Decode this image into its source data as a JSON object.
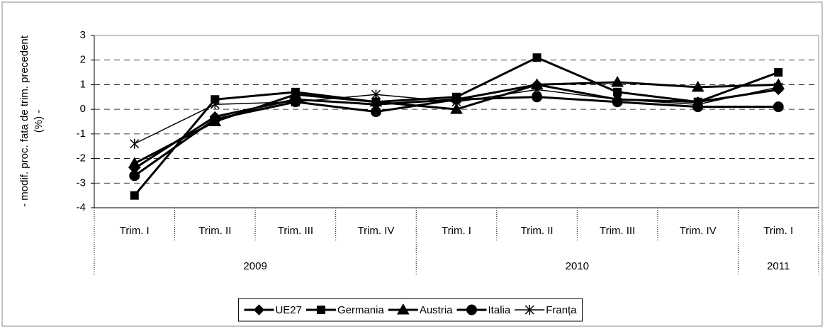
{
  "chart_data": {
    "type": "line",
    "ylabel": [
      "- modif. proc. fata de trim. precedent",
      "(%) -"
    ],
    "category_groups": [
      {
        "name": "2009",
        "categories": [
          "Trim. I",
          "Trim. II",
          "Trim. III",
          "Trim. IV"
        ]
      },
      {
        "name": "2010",
        "categories": [
          "Trim. I",
          "Trim. II",
          "Trim. III",
          "Trim. IV"
        ]
      },
      {
        "name": "2011",
        "categories": [
          "Trim. I"
        ]
      }
    ],
    "series": [
      {
        "name": "UE27",
        "color": "#000000",
        "marker": "diamond",
        "values": [
          -2.4,
          -0.3,
          0.4,
          0.2,
          0.4,
          1.0,
          0.4,
          0.3,
          0.8
        ]
      },
      {
        "name": "Germania",
        "color": "#000000",
        "marker": "square",
        "values": [
          -3.5,
          0.4,
          0.7,
          0.3,
          0.5,
          2.1,
          0.7,
          0.3,
          1.5
        ]
      },
      {
        "name": "Austria",
        "color": "#000000",
        "marker": "triangle",
        "values": [
          -2.2,
          -0.5,
          0.6,
          0.3,
          0.0,
          1.0,
          1.1,
          0.9,
          1.0
        ]
      },
      {
        "name": "Italia",
        "color": "#000000",
        "marker": "circle",
        "values": [
          -2.7,
          -0.4,
          0.3,
          -0.1,
          0.4,
          0.5,
          0.3,
          0.1,
          0.1
        ]
      },
      {
        "name": "Franța",
        "color": "#000000",
        "marker": "asterisk",
        "values": [
          -1.4,
          0.2,
          0.3,
          0.6,
          0.3,
          0.8,
          0.4,
          0.2,
          0.9
        ]
      }
    ],
    "ylim": [
      -4,
      3
    ],
    "yticks": [
      -4,
      -3,
      -2,
      -1,
      0,
      1,
      2,
      3
    ],
    "grid": true,
    "legend": "bottom"
  }
}
